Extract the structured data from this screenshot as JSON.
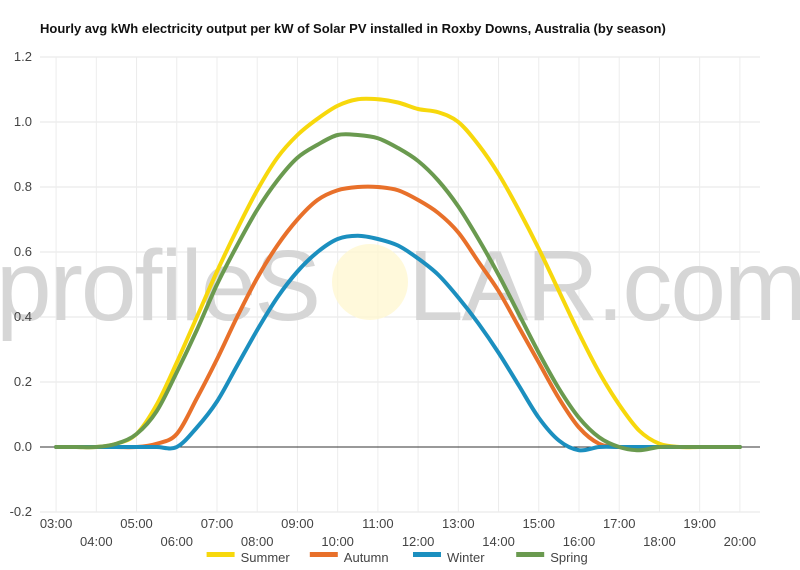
{
  "watermark": {
    "left": "profileS",
    "right": "LAR.com"
  },
  "chart_data": {
    "type": "line",
    "title": "Hourly avg kWh electricity output per kW of Solar PV installed in Roxby Downs, Australia (by season)",
    "xlabel": "",
    "ylabel": "",
    "x": [
      3,
      3.5,
      4,
      4.5,
      5,
      5.5,
      6,
      6.5,
      7,
      7.5,
      8,
      8.5,
      9,
      9.5,
      10,
      10.5,
      11,
      11.5,
      12,
      12.5,
      13,
      13.5,
      14,
      14.5,
      15,
      15.5,
      16,
      16.5,
      17,
      17.5,
      18,
      18.5,
      19,
      19.5,
      20
    ],
    "x_tick_labels": [
      "03:00",
      "04:00",
      "05:00",
      "06:00",
      "07:00",
      "08:00",
      "09:00",
      "10:00",
      "11:00",
      "12:00",
      "13:00",
      "14:00",
      "15:00",
      "16:00",
      "17:00",
      "18:00",
      "19:00",
      "20:00"
    ],
    "x_tick_values": [
      3,
      4,
      5,
      6,
      7,
      8,
      9,
      10,
      11,
      12,
      13,
      14,
      15,
      16,
      17,
      18,
      19,
      20
    ],
    "y_tick_labels": [
      "-0.2",
      "0.0",
      "0.2",
      "0.4",
      "0.6",
      "0.8",
      "1.0",
      "1.2"
    ],
    "y_tick_values": [
      -0.2,
      0,
      0.2,
      0.4,
      0.6,
      0.8,
      1.0,
      1.2
    ],
    "xlim": [
      2.6,
      20.5
    ],
    "ylim": [
      -0.2,
      1.2
    ],
    "grid": true,
    "legend_position": "bottom",
    "series": [
      {
        "name": "Summer",
        "color": "#f7d80c",
        "values": [
          0.0,
          0.0,
          0.0,
          0.01,
          0.04,
          0.13,
          0.26,
          0.4,
          0.54,
          0.67,
          0.79,
          0.89,
          0.96,
          1.01,
          1.05,
          1.07,
          1.07,
          1.06,
          1.04,
          1.03,
          1.0,
          0.93,
          0.84,
          0.73,
          0.61,
          0.48,
          0.35,
          0.23,
          0.13,
          0.05,
          0.01,
          0.0,
          0.0,
          0.0,
          0.0
        ]
      },
      {
        "name": "Autumn",
        "color": "#e8702a",
        "values": [
          0.0,
          0.0,
          0.0,
          0.0,
          0.0,
          0.01,
          0.04,
          0.15,
          0.27,
          0.4,
          0.52,
          0.62,
          0.7,
          0.76,
          0.79,
          0.8,
          0.8,
          0.79,
          0.76,
          0.72,
          0.66,
          0.57,
          0.48,
          0.37,
          0.26,
          0.15,
          0.06,
          0.01,
          0.0,
          0.0,
          0.0,
          0.0,
          0.0,
          0.0,
          0.0
        ]
      },
      {
        "name": "Winter",
        "color": "#1b8fbf",
        "values": [
          0.0,
          0.0,
          0.0,
          0.0,
          0.0,
          0.0,
          0.0,
          0.06,
          0.14,
          0.25,
          0.36,
          0.46,
          0.54,
          0.6,
          0.64,
          0.65,
          0.64,
          0.62,
          0.58,
          0.53,
          0.46,
          0.38,
          0.29,
          0.19,
          0.09,
          0.02,
          -0.01,
          0.0,
          0.0,
          0.0,
          0.0,
          0.0,
          0.0,
          0.0,
          0.0
        ]
      },
      {
        "name": "Spring",
        "color": "#6a9a4f",
        "values": [
          0.0,
          0.0,
          0.0,
          0.01,
          0.04,
          0.11,
          0.23,
          0.36,
          0.5,
          0.62,
          0.73,
          0.82,
          0.89,
          0.93,
          0.96,
          0.96,
          0.95,
          0.92,
          0.88,
          0.82,
          0.74,
          0.64,
          0.53,
          0.41,
          0.29,
          0.18,
          0.09,
          0.03,
          0.0,
          -0.01,
          0.0,
          0.0,
          0.0,
          0.0,
          0.0
        ]
      }
    ]
  }
}
